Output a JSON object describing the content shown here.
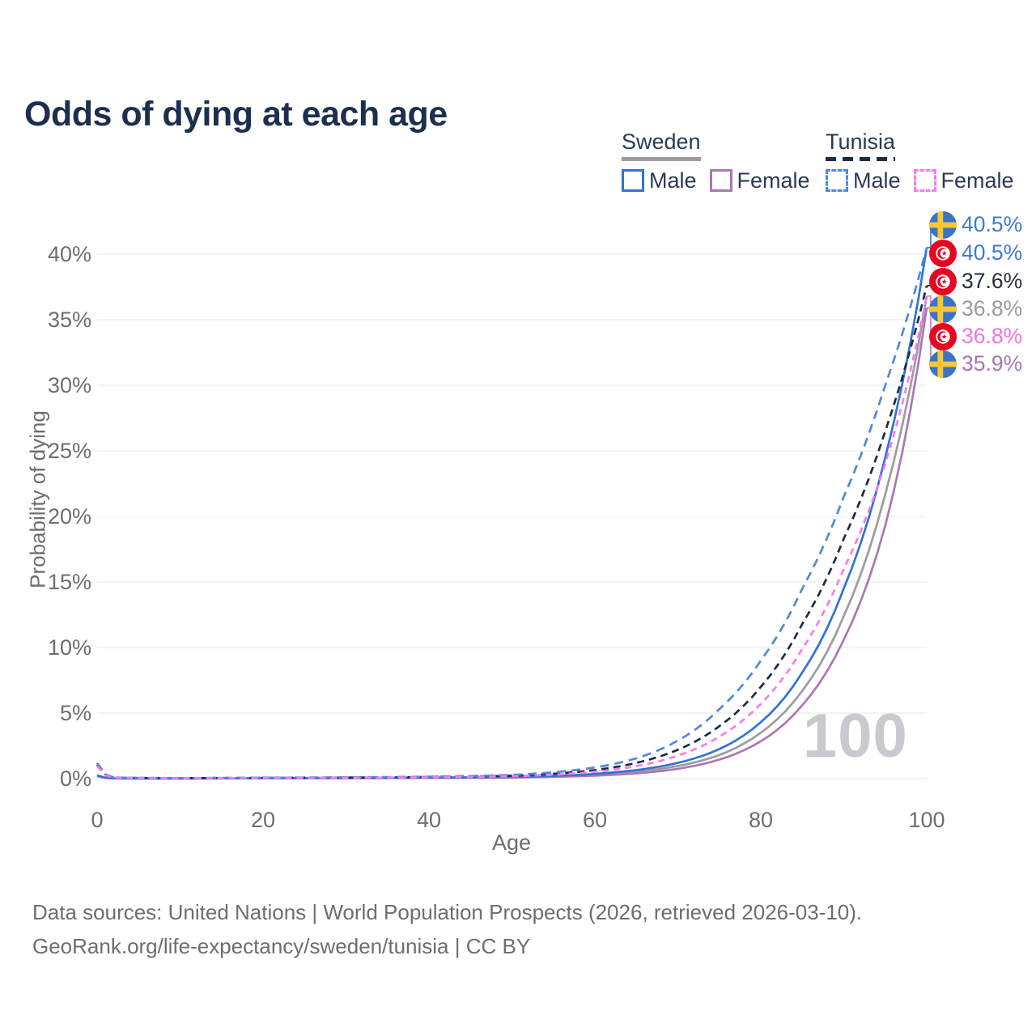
{
  "title": "Odds of dying at each age",
  "legend": {
    "sweden": {
      "label": "Sweden",
      "male": "Male",
      "female": "Female"
    },
    "tunisia": {
      "label": "Tunisia",
      "male": "Male",
      "female": "Female"
    }
  },
  "watermark": "100",
  "footer": {
    "line1": "Data sources: United Nations | World Population Prospects (2026, retrieved 2026-03-10).",
    "line2": "GeoRank.org/life-expectancy/sweden/tunisia | CC BY"
  },
  "colors": {
    "title": "#1d2f4e",
    "axis_text": "#6d6d72",
    "gridline": "#ececef",
    "watermark": "#c9c9ce",
    "sweden_male": "#3273d2",
    "sweden_female": "#ad76b5",
    "sweden_all": "#9c9ca1",
    "tunisia_male": "#4e8ad8",
    "tunisia_female": "#f87bef",
    "tunisia_all": "#1c2b45"
  },
  "chart_data": {
    "type": "line",
    "title": "Odds of dying at each age",
    "xlabel": "Age",
    "ylabel": "Probability of dying",
    "xlim": [
      0,
      100
    ],
    "ylim": [
      0,
      43
    ],
    "x_ticks": [
      0,
      20,
      40,
      60,
      80,
      100
    ],
    "y_ticks": [
      0,
      5,
      10,
      15,
      20,
      25,
      30,
      35,
      40
    ],
    "y_tick_suffix": "%",
    "grid": "horizontal",
    "legend_position": "top-right",
    "x": [
      0,
      2,
      5,
      10,
      15,
      20,
      25,
      30,
      35,
      40,
      45,
      50,
      55,
      60,
      65,
      70,
      75,
      80,
      85,
      90,
      95,
      100
    ],
    "series": [
      {
        "id": "sweden-all",
        "name": "Sweden (all)",
        "country": "Sweden",
        "sex": "All",
        "flag": "sweden",
        "color": "#9c9ca1",
        "dash": null,
        "label_row": 3,
        "end_label": "36.8%",
        "label_color": "#9a9aa0",
        "values": [
          0.22,
          0.018,
          0.01,
          0.01,
          0.016,
          0.03,
          0.037,
          0.045,
          0.055,
          0.065,
          0.08,
          0.1,
          0.17,
          0.29,
          0.52,
          0.96,
          1.8,
          3.5,
          6.7,
          12.4,
          21.7,
          36.8
        ]
      },
      {
        "id": "sweden-female",
        "name": "Sweden Female",
        "country": "Sweden",
        "sex": "Female",
        "flag": "sweden",
        "color": "#ad76b5",
        "dash": null,
        "label_row": 5,
        "end_label": "35.9%",
        "label_color": "#a578b5",
        "values": [
          0.19,
          0.015,
          0.009,
          0.009,
          0.013,
          0.02,
          0.025,
          0.03,
          0.04,
          0.05,
          0.065,
          0.085,
          0.135,
          0.225,
          0.4,
          0.75,
          1.45,
          2.85,
          5.6,
          10.6,
          19.3,
          35.9
        ]
      },
      {
        "id": "sweden-male",
        "name": "Sweden Male",
        "country": "Sweden",
        "sex": "Male",
        "flag": "sweden",
        "color": "#3273d2",
        "dash": null,
        "label_row": 0,
        "end_label": "40.5%",
        "label_color": "#3d7ad4",
        "values": [
          0.25,
          0.02,
          0.012,
          0.012,
          0.02,
          0.04,
          0.05,
          0.06,
          0.07,
          0.08,
          0.1,
          0.13,
          0.21,
          0.36,
          0.65,
          1.2,
          2.25,
          4.3,
          8.1,
          14.5,
          24.5,
          40.5
        ]
      },
      {
        "id": "tunisia-all",
        "name": "Tunisia (all)",
        "country": "Tunisia",
        "sex": "All",
        "flag": "tunisia",
        "color": "#1c2b45",
        "dash": "9 6",
        "label_row": 2,
        "end_label": "37.6%",
        "label_color": "#242e40",
        "values": [
          1.08,
          0.08,
          0.05,
          0.04,
          0.05,
          0.06,
          0.065,
          0.08,
          0.1,
          0.12,
          0.16,
          0.22,
          0.37,
          0.65,
          1.2,
          2.2,
          4.0,
          7.0,
          11.8,
          18.3,
          26.5,
          37.6
        ]
      },
      {
        "id": "tunisia-male",
        "name": "Tunisia Male",
        "country": "Tunisia",
        "sex": "Male",
        "flag": "tunisia",
        "color": "#4e8ad8",
        "dash": "11 7",
        "label_row": 1,
        "end_label": "40.5%",
        "label_color": "#3d7ad4",
        "values": [
          1.2,
          0.09,
          0.055,
          0.045,
          0.055,
          0.07,
          0.08,
          0.1,
          0.12,
          0.15,
          0.2,
          0.28,
          0.48,
          0.85,
          1.55,
          2.9,
          5.3,
          9.0,
          14.5,
          21.5,
          30.0,
          40.5
        ]
      },
      {
        "id": "tunisia-female",
        "name": "Tunisia Female",
        "country": "Tunisia",
        "sex": "Female",
        "flag": "tunisia",
        "color": "#f87bef",
        "dash": "8 6",
        "label_row": 4,
        "end_label": "36.8%",
        "label_color": "#f473e6",
        "values": [
          0.95,
          0.07,
          0.045,
          0.035,
          0.04,
          0.045,
          0.05,
          0.06,
          0.08,
          0.1,
          0.13,
          0.18,
          0.3,
          0.52,
          0.95,
          1.75,
          3.2,
          5.7,
          9.9,
          16.0,
          24.0,
          36.8
        ]
      }
    ]
  }
}
